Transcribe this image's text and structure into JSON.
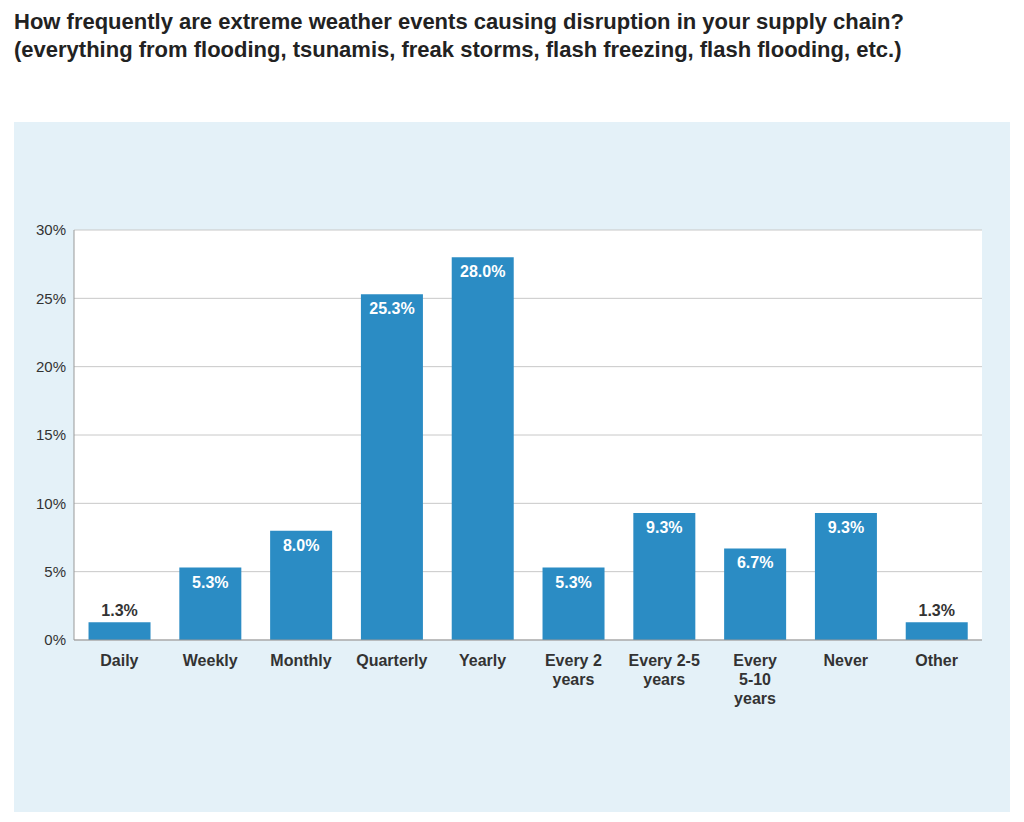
{
  "chart_data": {
    "type": "bar",
    "title": "How frequently are extreme weather events causing disruption in your supply chain? (everything from flooding, tsunamis, freak storms, flash freezing, flash flooding, etc.)",
    "categories": [
      "Daily",
      "Weekly",
      "Monthly",
      "Quarterly",
      "Yearly",
      "Every 2 years",
      "Every 2-5 years",
      "Every 5-10 years",
      "Never",
      "Other"
    ],
    "values": [
      1.3,
      5.3,
      8.0,
      25.3,
      28.0,
      5.3,
      9.3,
      6.7,
      9.3,
      1.3
    ],
    "value_labels": [
      "1.3%",
      "5.3%",
      "8.0%",
      "25.3%",
      "28.0%",
      "5.3%",
      "9.3%",
      "6.7%",
      "9.3%",
      "1.3%"
    ],
    "color": "#2b8cc4",
    "ylim": [
      0,
      30
    ],
    "yticks": [
      {
        "value": 0,
        "label": "0%"
      },
      {
        "value": 5,
        "label": "5%"
      },
      {
        "value": 10,
        "label": "10%"
      },
      {
        "value": 15,
        "label": "15%"
      },
      {
        "value": 20,
        "label": "20%"
      },
      {
        "value": 25,
        "label": "25%"
      },
      {
        "value": 30,
        "label": "30%"
      }
    ],
    "grid": true,
    "data_labels": true
  }
}
